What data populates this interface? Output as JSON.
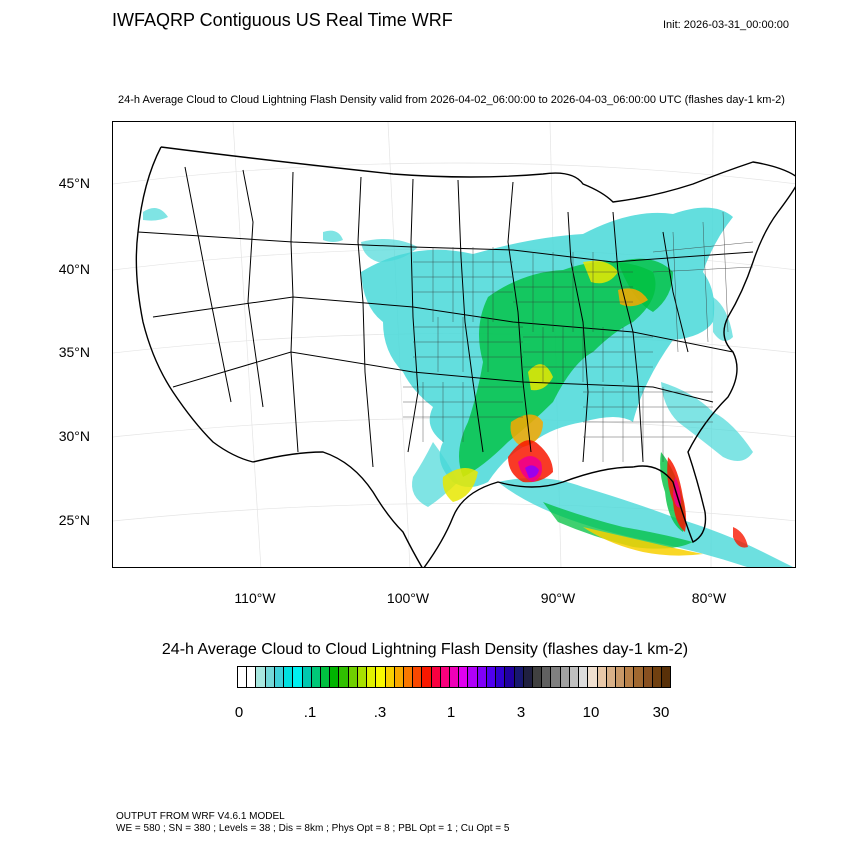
{
  "header": {
    "title": "IWFAQRP Contiguous US Real Time WRF",
    "init": "Init: 2026-03-31_00:00:00",
    "subtitle": "24-h Average Cloud to Cloud Lightning Flash Density valid from 2026-04-02_06:00:00 to 2026-04-03_06:00:00 UTC   (flashes day-1 km-2)"
  },
  "map": {
    "lat_labels": [
      "45°N",
      "40°N",
      "35°N",
      "30°N",
      "25°N"
    ],
    "lon_labels": [
      "110°W",
      "100°W",
      "90°W",
      "80°W"
    ]
  },
  "colorbar": {
    "title": "24-h Average Cloud to Cloud Lightning Flash Density  (flashes day-1 km-2)",
    "tick_labels": [
      "0",
      ".1",
      ".3",
      "1",
      "3",
      "10",
      "30"
    ],
    "colors": [
      "#ffffff",
      "#ffffff",
      "#a8e8e0",
      "#74d8d8",
      "#40d0d8",
      "#00e0e0",
      "#00f0f0",
      "#00c8b0",
      "#00c878",
      "#00c040",
      "#00b400",
      "#30c000",
      "#70d000",
      "#a8e000",
      "#e0f000",
      "#f8f800",
      "#f8d000",
      "#f8a800",
      "#f87800",
      "#f84800",
      "#f81800",
      "#f80040",
      "#f8007c",
      "#f000b8",
      "#e000f0",
      "#b000f8",
      "#8000f8",
      "#5000f0",
      "#3000d0",
      "#2000a0",
      "#181870",
      "#202040",
      "#404040",
      "#606060",
      "#808080",
      "#a0a0a0",
      "#c0c0c0",
      "#dcdcdc",
      "#f0e0d0",
      "#e8c8a8",
      "#d8b088",
      "#c89868",
      "#b88048",
      "#a06830",
      "#885020",
      "#704010",
      "#583008"
    ]
  },
  "footer": {
    "line1": "OUTPUT FROM WRF V4.6.1 MODEL",
    "line2": "WE = 580 ; SN = 380 ; Levels = 38 ; Dis = 8km ; Phys Opt = 8 ; PBL Opt = 1 ; Cu Opt = 5"
  }
}
